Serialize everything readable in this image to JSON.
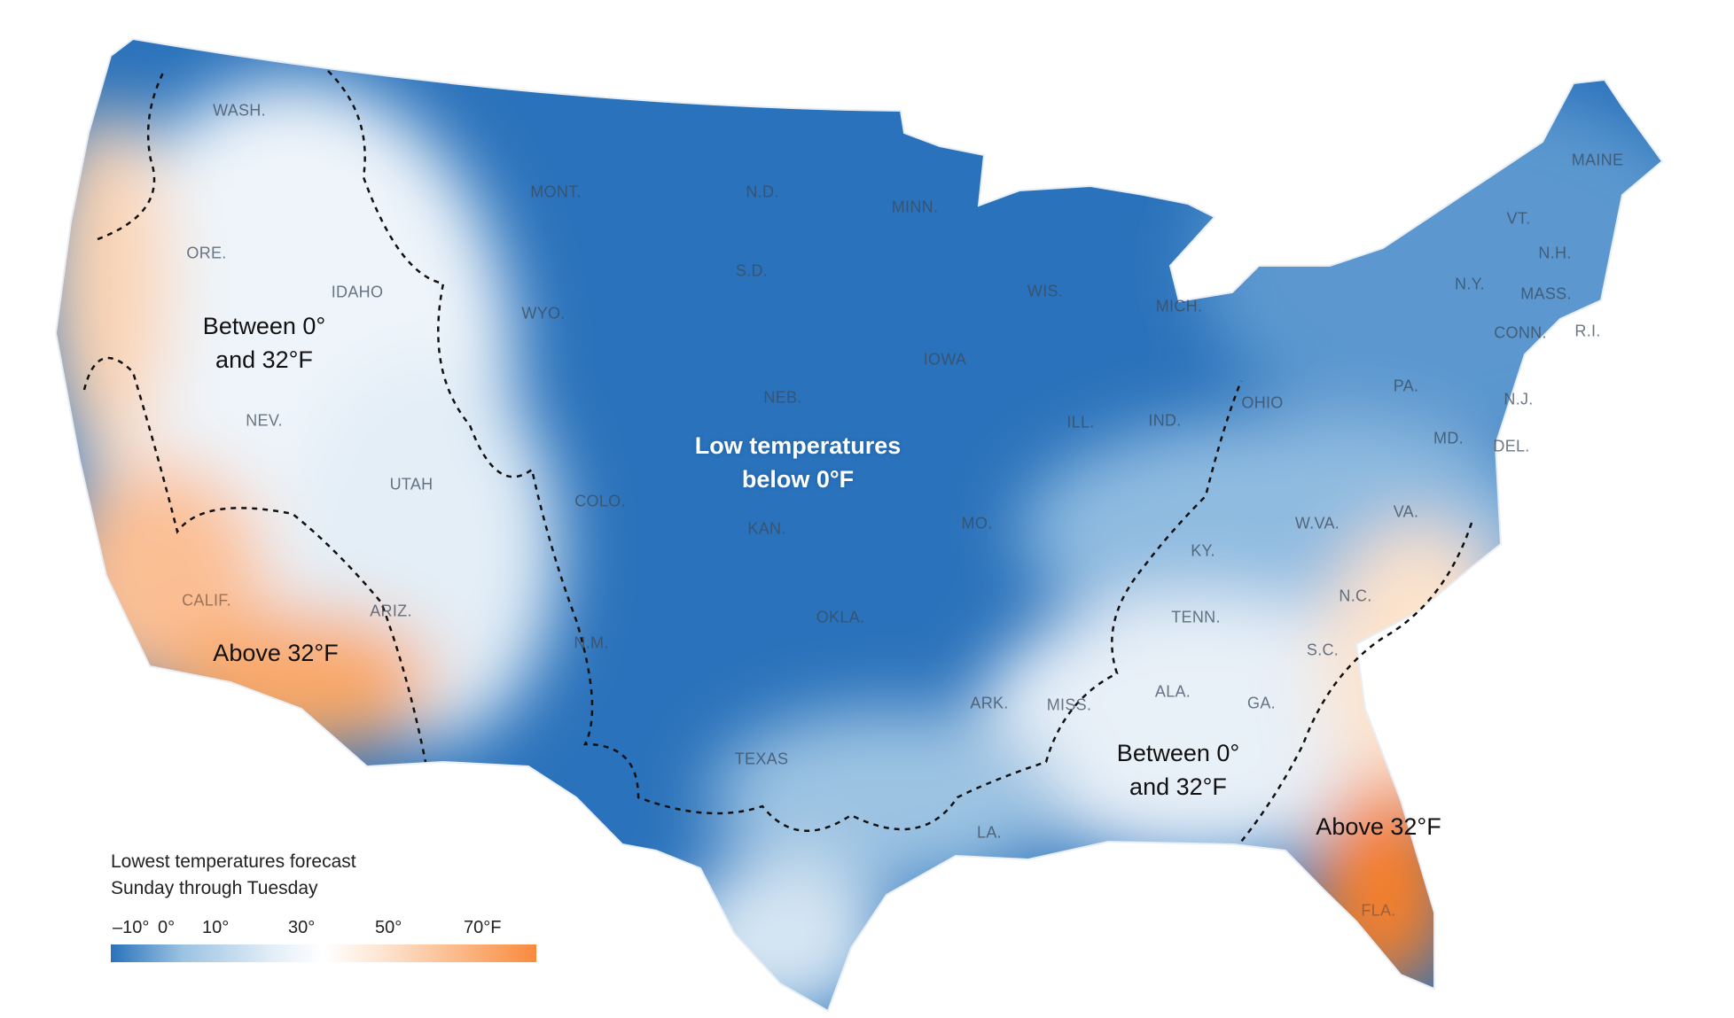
{
  "legend": {
    "title_line1": "Lowest temperatures forecast",
    "title_line2": "Sunday through Tuesday",
    "ticks": [
      "–10°",
      "0°",
      "10°",
      "30°",
      "50°",
      "70°F"
    ],
    "colors": {
      "cold": "#2a72bb",
      "mid": "#ffffff",
      "warm": "#f98a3c"
    }
  },
  "annotations": {
    "west_between": [
      "Between 0°",
      "and 32°F"
    ],
    "west_above": "Above 32°F",
    "central_below": [
      "Low temperatures",
      "below 0°F"
    ],
    "south_between": [
      "Between 0°",
      "and 32°F"
    ],
    "southeast_above": "Above 32°F"
  },
  "states": [
    "WASH.",
    "MONT.",
    "N.D.",
    "MINN.",
    "MAINE",
    "VT.",
    "N.H.",
    "ORE.",
    "IDAHO",
    "WYO.",
    "S.D.",
    "WIS.",
    "MICH.",
    "N.Y.",
    "MASS.",
    "CONN.",
    "R.I.",
    "IOWA",
    "NEB.",
    "OHIO",
    "PA.",
    "N.J.",
    "NEV.",
    "ILL.",
    "IND.",
    "MD.",
    "DEL.",
    "UTAH",
    "COLO.",
    "W.VA.",
    "VA.",
    "MO.",
    "KAN.",
    "KY.",
    "CALIF.",
    "ARIZ.",
    "OKLA.",
    "N.C.",
    "TENN.",
    "S.C.",
    "N.M.",
    "ARK.",
    "MISS.",
    "ALA.",
    "GA.",
    "TEXAS",
    "LA.",
    "FLA."
  ]
}
